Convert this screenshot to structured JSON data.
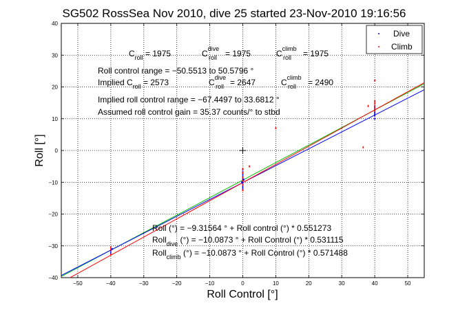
{
  "chart_data": {
    "type": "scatter",
    "title": "SG502 RossSea Nov 2010, dive 25 started 23-Nov-2010 19:16:56",
    "xlabel": "Roll Control [°]",
    "ylabel": "Roll [°]",
    "xlim": [
      -55,
      55
    ],
    "ylim": [
      -40,
      40
    ],
    "xticks": [
      -50,
      -40,
      -30,
      -20,
      -10,
      0,
      10,
      20,
      30,
      40,
      50
    ],
    "yticks": [
      -40,
      -30,
      -20,
      -10,
      0,
      10,
      20,
      30,
      40
    ],
    "xtick_labels": [
      "−50",
      "−40",
      "−30",
      "−20",
      "−10",
      "0",
      "10",
      "20",
      "30",
      "40",
      "50"
    ],
    "ytick_labels": [
      "−40",
      "−30",
      "−20",
      "−10",
      "0",
      "10",
      "20",
      "30",
      "40"
    ],
    "grid": true,
    "legend_position": "top-right",
    "legend": [
      {
        "name": "Dive",
        "color": "#0000ff"
      },
      {
        "name": "Climb",
        "color": "#ff0000"
      }
    ],
    "series": [
      {
        "name": "Dive",
        "color": "#0000ff",
        "points": [
          [
            -40,
            -31.5
          ],
          [
            -40,
            -32.2
          ],
          [
            -39.6,
            -31.0
          ],
          [
            0,
            -6.0
          ],
          [
            0,
            -6.8
          ],
          [
            0,
            -7.5
          ],
          [
            0,
            -8.2
          ],
          [
            0,
            -8.9
          ],
          [
            0,
            -9.6
          ],
          [
            0,
            -10.3
          ],
          [
            0,
            -11.0
          ],
          [
            0,
            -11.6
          ],
          [
            0,
            -12.3
          ],
          [
            0.3,
            -9.2
          ],
          [
            -0.3,
            -10.0
          ],
          [
            40,
            10.0
          ],
          [
            40,
            11.0
          ],
          [
            40,
            11.5
          ],
          [
            40,
            12.0
          ],
          [
            40,
            12.8
          ],
          [
            40,
            13.5
          ],
          [
            40,
            14.0
          ]
        ]
      },
      {
        "name": "Climb",
        "color": "#ff0000",
        "points": [
          [
            -40,
            -30.5
          ],
          [
            -40,
            -31.2
          ],
          [
            -40,
            -32.8
          ],
          [
            0,
            -5.8
          ],
          [
            0,
            -7.0
          ],
          [
            0,
            -8.5
          ],
          [
            0,
            -9.5
          ],
          [
            0,
            -10.8
          ],
          [
            0,
            -12.5
          ],
          [
            2,
            -5.0
          ],
          [
            10,
            7.0
          ],
          [
            36.5,
            1.0
          ],
          [
            38,
            14.0
          ],
          [
            40,
            12.5
          ],
          [
            40,
            13.2
          ],
          [
            40,
            14.0
          ],
          [
            40,
            14.8
          ],
          [
            40,
            15.5
          ],
          [
            40,
            22.0
          ]
        ]
      }
    ],
    "fit_lines": [
      {
        "name": "Roll",
        "color": "#00c000",
        "intercept": -9.31564,
        "slope": 0.551273
      },
      {
        "name": "Roll dive",
        "color": "#0000ff",
        "intercept": -10.0873,
        "slope": 0.531115
      },
      {
        "name": "Roll climb",
        "color": "#ff0000",
        "intercept": -10.0873,
        "slope": 0.571488
      }
    ],
    "marker": {
      "x": 0,
      "y": 0,
      "color": "#000000"
    }
  },
  "annotations": {
    "c_roll": {
      "base": "C",
      "sub": "roll",
      "rest": " = 1975"
    },
    "c_roll_dive": {
      "base": "C",
      "sup": "dive",
      "sub": "roll",
      "rest": " = 1975"
    },
    "c_roll_climb": {
      "base": "C",
      "sup": "climb",
      "sub": "roll",
      "rest": " = 1975"
    },
    "roll_control_range": "Roll control range = −50.5513 to 50.5796 °",
    "implied_prefix": "Implied C",
    "implied_sub": "roll",
    "implied_rest": " = 2573",
    "implied_dive": {
      "base": "C",
      "sup": "dive",
      "sub": "roll",
      "rest": " = 2647"
    },
    "implied_climb": {
      "base": "C",
      "sup": "climb",
      "sub": "roll",
      "rest": " = 2490"
    },
    "implied_range": "Implied roll control range = −67.4497 to 33.6812 °",
    "assumed_gain": "Assumed roll control gain = 35.37 counts/° to stbd",
    "fit_all": "Roll (°) = −9.31564 ° + Roll control (°) * 0.551273",
    "fit_dive_base": "Roll",
    "fit_dive_sub": "dive",
    "fit_dive_rest": " (°) = −10.0873 ° + Roll Control (°) * 0.531115",
    "fit_climb_base": "Roll",
    "fit_climb_sub": "climb",
    "fit_climb_rest": " (°) = −10.0873 ° + Roll Control (°) * 0.571488"
  }
}
